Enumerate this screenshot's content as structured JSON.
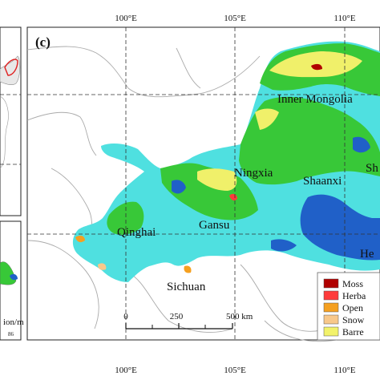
{
  "panel_label": "(c)",
  "lon_labels_top": [
    "100°E",
    "105°E",
    "110°E"
  ],
  "lon_labels_bottom": [
    "100°E",
    "105°E",
    "110°E"
  ],
  "provinces": {
    "inner_mongolia": "Inner Mongolia",
    "ningxia": "Ningxia",
    "shaanxi": "Shaanxi",
    "shanxi_partial": "Sh",
    "gansu": "Gansu",
    "qinghai": "Qinghai",
    "sichuan": "Sichuan",
    "henan_partial": "He"
  },
  "scale_bar": {
    "ticks": [
      "0",
      "250",
      "500 km"
    ]
  },
  "left_panel_text": {
    "line1": "ion/m",
    "line2": "86"
  },
  "legend": [
    {
      "label": "Moss",
      "color": "#b00000"
    },
    {
      "label": "Herba",
      "color": "#ff3b3b"
    },
    {
      "label": "Open",
      "color": "#f5a020"
    },
    {
      "label": "Snow",
      "color": "#f8c88a"
    },
    {
      "label": "Barre",
      "color": "#f2f26a"
    }
  ],
  "colors": {
    "basin_main": "#4fe0e0",
    "grass": "#38c838",
    "yellow": "#f0f06a",
    "blue": "#2060c8",
    "background_land": "#ffffff",
    "grid": "#333333",
    "border": "#999999"
  }
}
